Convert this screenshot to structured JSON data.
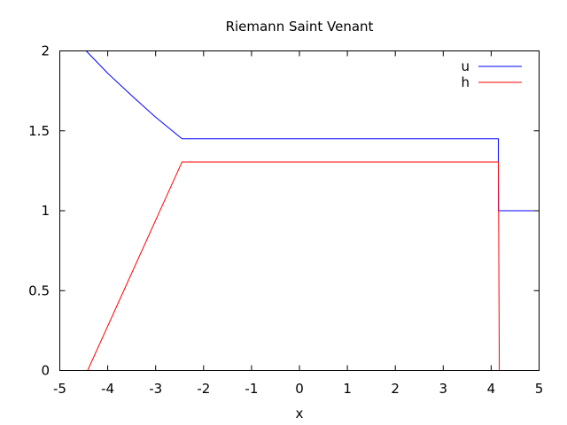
{
  "chart_data": {
    "type": "line",
    "title": "Riemann Saint Venant",
    "xlabel": "x",
    "ylabel": "",
    "xlim": [
      -5,
      5
    ],
    "ylim": [
      0,
      2
    ],
    "x_ticks": [
      -5,
      -4,
      -3,
      -2,
      -1,
      0,
      1,
      2,
      3,
      4,
      5
    ],
    "y_ticks": [
      0,
      0.5,
      1,
      1.5,
      2
    ],
    "x_tick_labels": [
      "-5",
      "-4",
      "-3",
      "-2",
      "-1",
      "0",
      "1",
      "2",
      "3",
      "4",
      "5"
    ],
    "y_tick_labels": [
      "0",
      "0.5",
      "1",
      "1.5",
      "2"
    ],
    "grid": false,
    "legend_position": "top-right",
    "series": [
      {
        "name": "u",
        "color": "#0000ff",
        "x": [
          -4.45,
          -4.0,
          -3.5,
          -3.0,
          -2.45,
          4.15,
          4.15,
          5.0
        ],
        "y": [
          2.0,
          1.86,
          1.72,
          1.585,
          1.45,
          1.45,
          1.0,
          1.0
        ]
      },
      {
        "name": "h",
        "color": "#ff0000",
        "x": [
          -5.0,
          -4.42,
          -2.45,
          4.15,
          4.17,
          5.0
        ],
        "y": [
          0.0,
          0.0,
          1.305,
          1.305,
          0.0,
          0.0
        ]
      }
    ]
  }
}
